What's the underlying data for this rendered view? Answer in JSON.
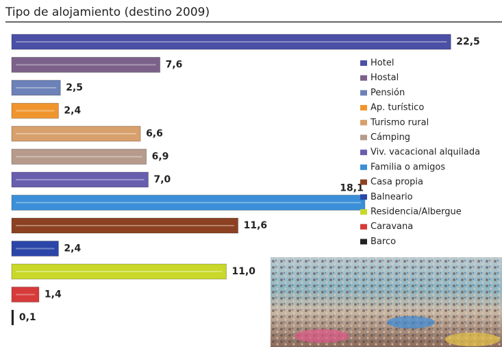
{
  "chart_data": {
    "type": "bar",
    "orientation": "horizontal",
    "title": "Tipo de alojamiento (destino 2009)",
    "categories": [
      "Hotel",
      "Hostal",
      "Pensión",
      "Ap. turístico",
      "Turismo rural",
      "Cámping",
      "Viv. vacacional alquilada",
      "Familia o amigos",
      "Casa propia",
      "Balneario",
      "Residencia/Albergue",
      "Caravana",
      "Barco"
    ],
    "values": [
      22.5,
      7.6,
      2.5,
      2.4,
      6.6,
      6.9,
      7.0,
      18.1,
      11.6,
      2.4,
      11.0,
      1.4,
      0.1
    ],
    "value_labels": [
      "22,5",
      "7,6",
      "2,5",
      "2,4",
      "6,6",
      "6,9",
      "7,0",
      "18,1",
      "11,6",
      "2,4",
      "11,0",
      "1,4",
      "0,1"
    ],
    "colors": [
      "#4b50a6",
      "#7b6189",
      "#6c82b8",
      "#f0952e",
      "#d8a06c",
      "#b69a8c",
      "#675fae",
      "#3a8fd8",
      "#8c4222",
      "#2b46a8",
      "#c9d82a",
      "#d63a3a",
      "#222222"
    ]
  }
}
